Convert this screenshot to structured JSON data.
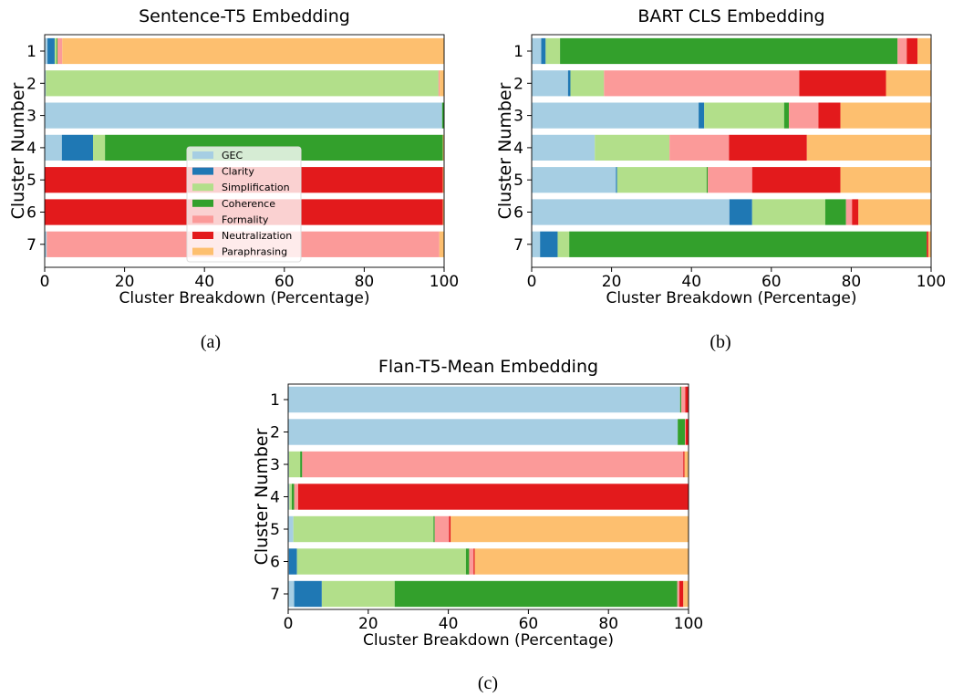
{
  "legend": {
    "labels": [
      "GEC",
      "Clarity",
      "Simplification",
      "Coherence",
      "Formality",
      "Neutralization",
      "Paraphrasing"
    ],
    "colors": [
      "#a6cee3",
      "#1f78b4",
      "#b2df8a",
      "#33a02c",
      "#fb9a99",
      "#e31a1c",
      "#fdbf6f"
    ],
    "placement": "inside chart (a), lower-center"
  },
  "chart_data": [
    {
      "type": "bar",
      "orientation": "horizontal-stacked",
      "title": "Sentence-T5 Embedding",
      "xlabel": "Cluster Breakdown (Percentage)",
      "ylabel": "Cluster Number",
      "caption": "(a)",
      "xlim": [
        0,
        100
      ],
      "xticks": [
        "0",
        "20",
        "40",
        "60",
        "80",
        "100"
      ],
      "categories": [
        "1",
        "2",
        "3",
        "4",
        "5",
        "6",
        "7"
      ],
      "series": [
        {
          "name": "GEC",
          "values": [
            0.7,
            0.3,
            99.5,
            4.3,
            0,
            0,
            0.5
          ]
        },
        {
          "name": "Clarity",
          "values": [
            1.8,
            0,
            0,
            7.8,
            0,
            0,
            0
          ]
        },
        {
          "name": "Simplification",
          "values": [
            0.5,
            98.3,
            0,
            3.0,
            0,
            0,
            0
          ]
        },
        {
          "name": "Coherence",
          "values": [
            0.2,
            0,
            0.5,
            84.6,
            0,
            0,
            0
          ]
        },
        {
          "name": "Formality",
          "values": [
            1.2,
            0.3,
            0,
            0,
            0,
            0,
            98.3
          ]
        },
        {
          "name": "Neutralization",
          "values": [
            0,
            0,
            0,
            0,
            99.7,
            99.7,
            0
          ]
        },
        {
          "name": "Paraphrasing",
          "values": [
            95.6,
            1.1,
            0,
            0.3,
            0.3,
            0.3,
            1.2
          ]
        }
      ]
    },
    {
      "type": "bar",
      "orientation": "horizontal-stacked",
      "title": "BART CLS Embedding",
      "xlabel": "Cluster Breakdown (Percentage)",
      "ylabel": "Cluster Number",
      "caption": "(b)",
      "xlim": [
        0,
        100
      ],
      "xticks": [
        "0",
        "20",
        "40",
        "60",
        "80",
        "100"
      ],
      "categories": [
        "1",
        "2",
        "3",
        "4",
        "5",
        "6",
        "7"
      ],
      "series": [
        {
          "name": "GEC",
          "values": [
            2.4,
            9.1,
            41.8,
            15.8,
            21.1,
            49.5,
            2.1
          ]
        },
        {
          "name": "Clarity",
          "values": [
            1.1,
            0.6,
            1.4,
            0,
            0.3,
            5.7,
            4.4
          ]
        },
        {
          "name": "Simplification",
          "values": [
            3.6,
            8.4,
            20.0,
            18.7,
            22.4,
            18.3,
            2.9
          ]
        },
        {
          "name": "Coherence",
          "values": [
            84.5,
            0,
            1.2,
            0,
            0.3,
            5.2,
            89.5
          ]
        },
        {
          "name": "Formality",
          "values": [
            2.3,
            48.9,
            7.4,
            14.9,
            11.1,
            1.5,
            0
          ]
        },
        {
          "name": "Neutralization",
          "values": [
            2.7,
            21.7,
            5.5,
            19.5,
            22.1,
            1.6,
            0.4
          ]
        },
        {
          "name": "Paraphrasing",
          "values": [
            3.4,
            11.3,
            22.7,
            31.1,
            22.7,
            18.2,
            0.7
          ]
        }
      ]
    },
    {
      "type": "bar",
      "orientation": "horizontal-stacked",
      "title": "Flan-T5-Mean Embedding",
      "xlabel": "Cluster Breakdown (Percentage)",
      "ylabel": "Cluster Number",
      "caption": "(c)",
      "xlim": [
        0,
        100
      ],
      "xticks": [
        "0",
        "20",
        "40",
        "60",
        "80",
        "100"
      ],
      "categories": [
        "1",
        "2",
        "3",
        "4",
        "5",
        "6",
        "7"
      ],
      "series": [
        {
          "name": "GEC",
          "values": [
            97.9,
            97.3,
            0.2,
            0.3,
            1.3,
            0.2,
            1.5
          ]
        },
        {
          "name": "Clarity",
          "values": [
            0,
            0,
            0,
            0,
            0,
            2.0,
            6.9
          ]
        },
        {
          "name": "Simplification",
          "values": [
            0,
            0,
            2.8,
            0.6,
            35.0,
            42.2,
            18.2
          ]
        },
        {
          "name": "Coherence",
          "values": [
            0.3,
            1.8,
            0.5,
            0.6,
            0.3,
            0.8,
            70.6
          ]
        },
        {
          "name": "Formality",
          "values": [
            1.0,
            0.2,
            95.2,
            1.0,
            3.6,
            1.1,
            0.5
          ]
        },
        {
          "name": "Neutralization",
          "values": [
            0.8,
            0.7,
            0.3,
            97.5,
            0.4,
            0.3,
            1.0
          ]
        },
        {
          "name": "Paraphrasing",
          "values": [
            0,
            0,
            1.0,
            0,
            59.4,
            53.4,
            1.3
          ]
        }
      ]
    }
  ]
}
